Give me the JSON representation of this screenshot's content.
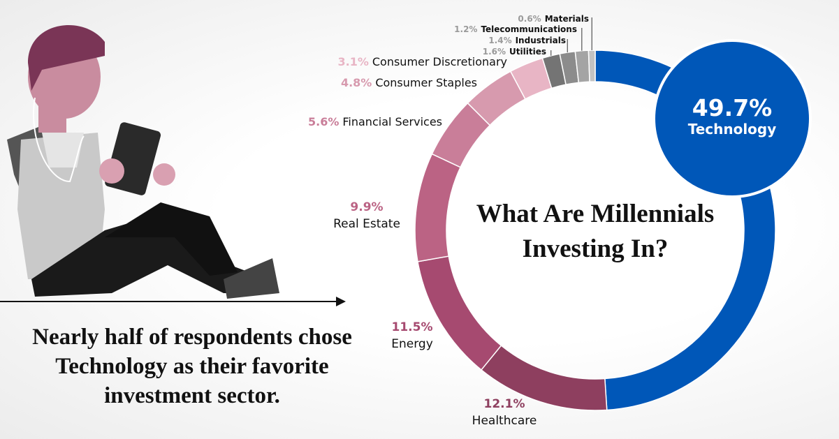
{
  "chart_data": {
    "type": "donut",
    "title": "What Are Millennials Investing In?",
    "caption": "Nearly half of respondents chose Technology as their favorite investment sector.",
    "categories": [
      "Technology",
      "Healthcare",
      "Energy",
      "Real Estate",
      "Financial Services",
      "Consumer Staples",
      "Consumer Discretionary",
      "Utilities",
      "Industrials",
      "Telecommunications",
      "Materials"
    ],
    "values": [
      49.7,
      12.1,
      11.5,
      9.9,
      5.6,
      4.8,
      3.1,
      1.6,
      1.4,
      1.2,
      0.6
    ],
    "value_labels": [
      "49.7%",
      "12.1%",
      "11.5%",
      "9.9%",
      "5.6%",
      "4.8%",
      "3.1%",
      "1.6%",
      "1.4%",
      "1.2%",
      "0.6%"
    ],
    "colors": [
      "#0057b8",
      "#8e3f5f",
      "#a64a70",
      "#bb6384",
      "#c97e99",
      "#d79aae",
      "#e8b5c5",
      "#747474",
      "#8c8c8c",
      "#a4a4a4",
      "#c2c2c2"
    ]
  }
}
